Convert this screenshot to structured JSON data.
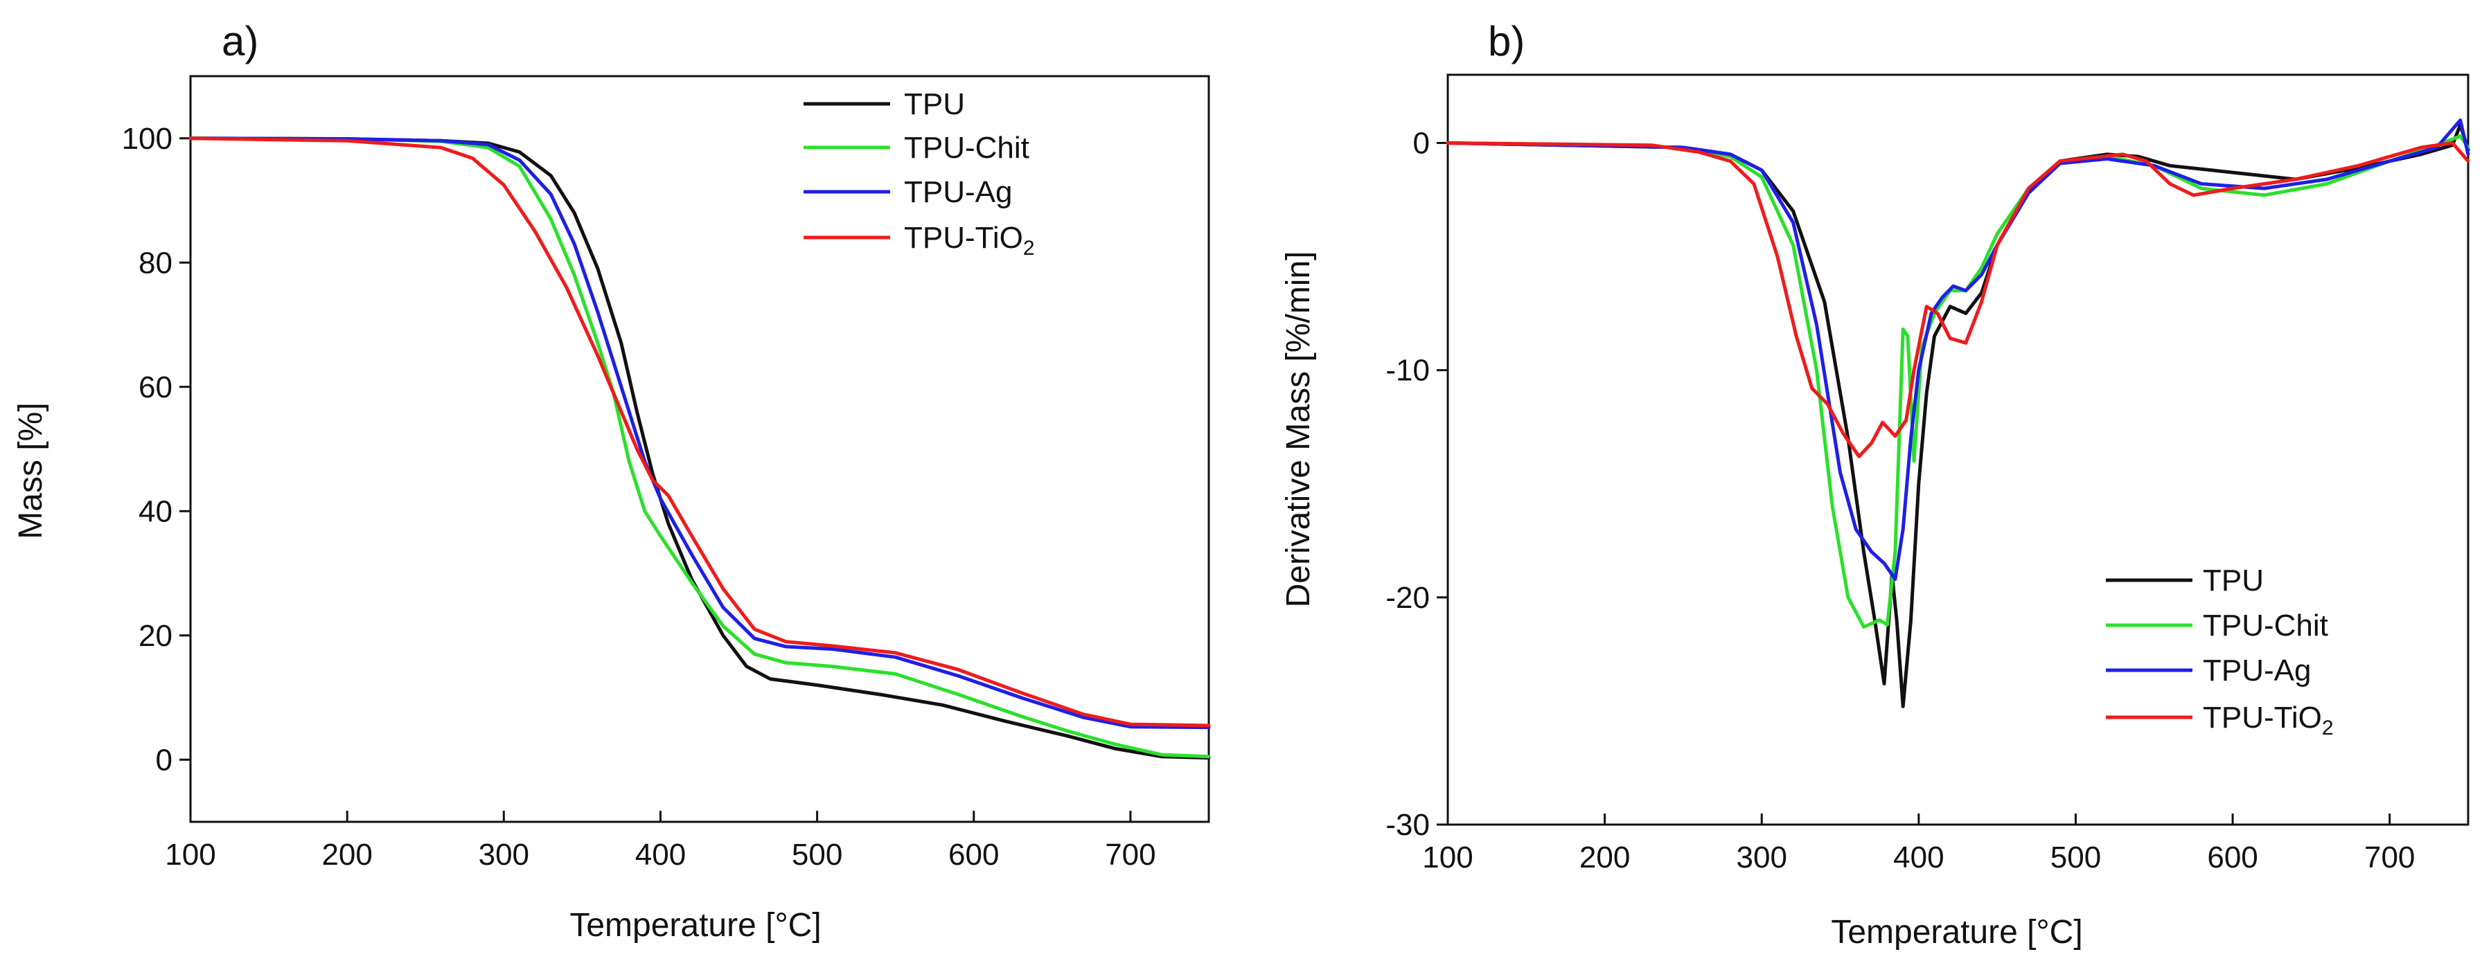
{
  "chart_data": [
    {
      "panel": "a)",
      "type": "line",
      "title": "",
      "xlabel": "Temperature [°C]",
      "ylabel": "Mass  [%]",
      "xlim": [
        100,
        750
      ],
      "ylim": [
        -10,
        110
      ],
      "xticks": [
        100,
        200,
        300,
        400,
        500,
        600,
        700
      ],
      "yticks": [
        0,
        20,
        40,
        60,
        80,
        100
      ],
      "grid": false,
      "legend_position": "top-right",
      "series": [
        {
          "name": "TPU",
          "color": "#111111",
          "points": [
            [
              100,
              100
            ],
            [
              200,
              99.9
            ],
            [
              260,
              99.6
            ],
            [
              290,
              99.2
            ],
            [
              310,
              97.8
            ],
            [
              330,
              94
            ],
            [
              345,
              88
            ],
            [
              360,
              79
            ],
            [
              375,
              67
            ],
            [
              385,
              56
            ],
            [
              395,
              46
            ],
            [
              405,
              38
            ],
            [
              420,
              29
            ],
            [
              440,
              20
            ],
            [
              455,
              15
            ],
            [
              470,
              13
            ],
            [
              500,
              12
            ],
            [
              540,
              10.5
            ],
            [
              580,
              8.8
            ],
            [
              620,
              6.2
            ],
            [
              660,
              3.8
            ],
            [
              690,
              1.8
            ],
            [
              720,
              0.5
            ],
            [
              750,
              0.3
            ]
          ]
        },
        {
          "name": "TPU-Chit",
          "color": "#2be02b",
          "points": [
            [
              100,
              100
            ],
            [
              200,
              99.9
            ],
            [
              260,
              99.5
            ],
            [
              290,
              98.5
            ],
            [
              310,
              95.5
            ],
            [
              330,
              87
            ],
            [
              345,
              78
            ],
            [
              360,
              67
            ],
            [
              370,
              59
            ],
            [
              380,
              48
            ],
            [
              390,
              40
            ],
            [
              400,
              36
            ],
            [
              420,
              28.5
            ],
            [
              440,
              21.5
            ],
            [
              460,
              17
            ],
            [
              480,
              15.6
            ],
            [
              510,
              15
            ],
            [
              550,
              13.8
            ],
            [
              590,
              10.5
            ],
            [
              630,
              7
            ],
            [
              660,
              4.6
            ],
            [
              690,
              2.5
            ],
            [
              720,
              0.8
            ],
            [
              750,
              0.5
            ]
          ]
        },
        {
          "name": "TPU-Ag",
          "color": "#1f1fe6",
          "points": [
            [
              100,
              100
            ],
            [
              200,
              99.9
            ],
            [
              260,
              99.6
            ],
            [
              290,
              99
            ],
            [
              310,
              96.5
            ],
            [
              330,
              91
            ],
            [
              345,
              83
            ],
            [
              360,
              72
            ],
            [
              375,
              60
            ],
            [
              390,
              48
            ],
            [
              400,
              42
            ],
            [
              420,
              33
            ],
            [
              440,
              24.5
            ],
            [
              460,
              19.5
            ],
            [
              480,
              18.2
            ],
            [
              510,
              17.8
            ],
            [
              550,
              16.5
            ],
            [
              590,
              13.5
            ],
            [
              630,
              10
            ],
            [
              670,
              6.8
            ],
            [
              700,
              5.3
            ],
            [
              750,
              5.2
            ]
          ]
        },
        {
          "name": "TPU-TiO2",
          "color": "#ee1c1c",
          "points": [
            [
              100,
              100
            ],
            [
              200,
              99.6
            ],
            [
              260,
              98.5
            ],
            [
              280,
              96.8
            ],
            [
              300,
              92.5
            ],
            [
              320,
              85
            ],
            [
              340,
              76
            ],
            [
              360,
              65
            ],
            [
              375,
              56
            ],
            [
              385,
              50
            ],
            [
              395,
              45
            ],
            [
              405,
              42.5
            ],
            [
              420,
              36
            ],
            [
              440,
              27.5
            ],
            [
              460,
              21
            ],
            [
              480,
              19
            ],
            [
              510,
              18.3
            ],
            [
              550,
              17.2
            ],
            [
              590,
              14.5
            ],
            [
              630,
              10.8
            ],
            [
              670,
              7.3
            ],
            [
              700,
              5.7
            ],
            [
              750,
              5.5
            ]
          ]
        }
      ]
    },
    {
      "panel": "b)",
      "type": "line",
      "title": "",
      "xlabel": "Temperature [°C]",
      "ylabel": "Derivative Mass [%/min]",
      "xlim": [
        100,
        750
      ],
      "ylim": [
        -30,
        3
      ],
      "xticks": [
        100,
        200,
        300,
        400,
        500,
        600,
        700
      ],
      "yticks": [
        -30,
        -20,
        -10,
        0
      ],
      "grid": false,
      "legend_position": "bottom-right",
      "series": [
        {
          "name": "TPU",
          "color": "#111111",
          "points": [
            [
              100,
              0
            ],
            [
              250,
              -0.2
            ],
            [
              280,
              -0.5
            ],
            [
              300,
              -1.2
            ],
            [
              320,
              -3
            ],
            [
              340,
              -7
            ],
            [
              355,
              -13
            ],
            [
              365,
              -18
            ],
            [
              372,
              -21
            ],
            [
              378,
              -23.8
            ],
            [
              383,
              -19
            ],
            [
              386,
              -21
            ],
            [
              390,
              -24.8
            ],
            [
              395,
              -21
            ],
            [
              400,
              -15
            ],
            [
              405,
              -11
            ],
            [
              410,
              -8.5
            ],
            [
              420,
              -7.2
            ],
            [
              430,
              -7.5
            ],
            [
              440,
              -6.6
            ],
            [
              450,
              -4.5
            ],
            [
              470,
              -2
            ],
            [
              490,
              -0.8
            ],
            [
              520,
              -0.5
            ],
            [
              540,
              -0.6
            ],
            [
              560,
              -1
            ],
            [
              600,
              -1.3
            ],
            [
              640,
              -1.6
            ],
            [
              680,
              -1.1
            ],
            [
              720,
              -0.5
            ],
            [
              740,
              -0.1
            ],
            [
              745,
              0.8
            ],
            [
              750,
              -0.3
            ]
          ]
        },
        {
          "name": "TPU-Chit",
          "color": "#2be02b",
          "points": [
            [
              100,
              0
            ],
            [
              250,
              -0.2
            ],
            [
              280,
              -0.6
            ],
            [
              300,
              -1.5
            ],
            [
              320,
              -4.5
            ],
            [
              335,
              -10
            ],
            [
              345,
              -16
            ],
            [
              355,
              -20
            ],
            [
              365,
              -21.3
            ],
            [
              375,
              -21
            ],
            [
              380,
              -21.2
            ],
            [
              385,
              -18
            ],
            [
              390,
              -8.2
            ],
            [
              393,
              -8.5
            ],
            [
              397,
              -14
            ],
            [
              402,
              -9
            ],
            [
              410,
              -7.5
            ],
            [
              420,
              -6.5
            ],
            [
              430,
              -6.5
            ],
            [
              440,
              -5.5
            ],
            [
              450,
              -4
            ],
            [
              470,
              -2
            ],
            [
              490,
              -0.8
            ],
            [
              520,
              -0.6
            ],
            [
              550,
              -1
            ],
            [
              580,
              -2
            ],
            [
              620,
              -2.3
            ],
            [
              660,
              -1.8
            ],
            [
              700,
              -0.8
            ],
            [
              730,
              -0.1
            ],
            [
              745,
              0.3
            ],
            [
              750,
              -0.2
            ]
          ]
        },
        {
          "name": "TPU-Ag",
          "color": "#1f1fe6",
          "points": [
            [
              100,
              0
            ],
            [
              250,
              -0.2
            ],
            [
              280,
              -0.5
            ],
            [
              300,
              -1.2
            ],
            [
              320,
              -3.5
            ],
            [
              335,
              -8
            ],
            [
              350,
              -14.5
            ],
            [
              360,
              -17
            ],
            [
              370,
              -18
            ],
            [
              378,
              -18.5
            ],
            [
              385,
              -19.2
            ],
            [
              390,
              -17
            ],
            [
              395,
              -13
            ],
            [
              400,
              -10
            ],
            [
              408,
              -7.5
            ],
            [
              415,
              -6.8
            ],
            [
              422,
              -6.3
            ],
            [
              430,
              -6.5
            ],
            [
              440,
              -5.8
            ],
            [
              450,
              -4.5
            ],
            [
              470,
              -2.2
            ],
            [
              490,
              -0.9
            ],
            [
              520,
              -0.7
            ],
            [
              550,
              -1
            ],
            [
              580,
              -1.8
            ],
            [
              620,
              -2
            ],
            [
              660,
              -1.6
            ],
            [
              700,
              -0.8
            ],
            [
              730,
              -0.2
            ],
            [
              745,
              1
            ],
            [
              750,
              -0.5
            ]
          ]
        },
        {
          "name": "TPU-TiO2",
          "color": "#ee1c1c",
          "points": [
            [
              100,
              0
            ],
            [
              230,
              -0.1
            ],
            [
              260,
              -0.4
            ],
            [
              280,
              -0.8
            ],
            [
              295,
              -1.8
            ],
            [
              310,
              -5
            ],
            [
              322,
              -8.5
            ],
            [
              332,
              -10.8
            ],
            [
              342,
              -11.5
            ],
            [
              352,
              -12.8
            ],
            [
              362,
              -13.8
            ],
            [
              370,
              -13.2
            ],
            [
              377,
              -12.3
            ],
            [
              385,
              -12.9
            ],
            [
              392,
              -12.2
            ],
            [
              397,
              -10
            ],
            [
              405,
              -7.2
            ],
            [
              412,
              -7.5
            ],
            [
              420,
              -8.6
            ],
            [
              430,
              -8.8
            ],
            [
              440,
              -7
            ],
            [
              450,
              -4.5
            ],
            [
              470,
              -2
            ],
            [
              490,
              -0.8
            ],
            [
              530,
              -0.5
            ],
            [
              545,
              -0.8
            ],
            [
              560,
              -1.8
            ],
            [
              575,
              -2.3
            ],
            [
              600,
              -2
            ],
            [
              640,
              -1.6
            ],
            [
              680,
              -1
            ],
            [
              720,
              -0.2
            ],
            [
              740,
              0
            ],
            [
              750,
              -0.8
            ]
          ]
        }
      ]
    }
  ]
}
